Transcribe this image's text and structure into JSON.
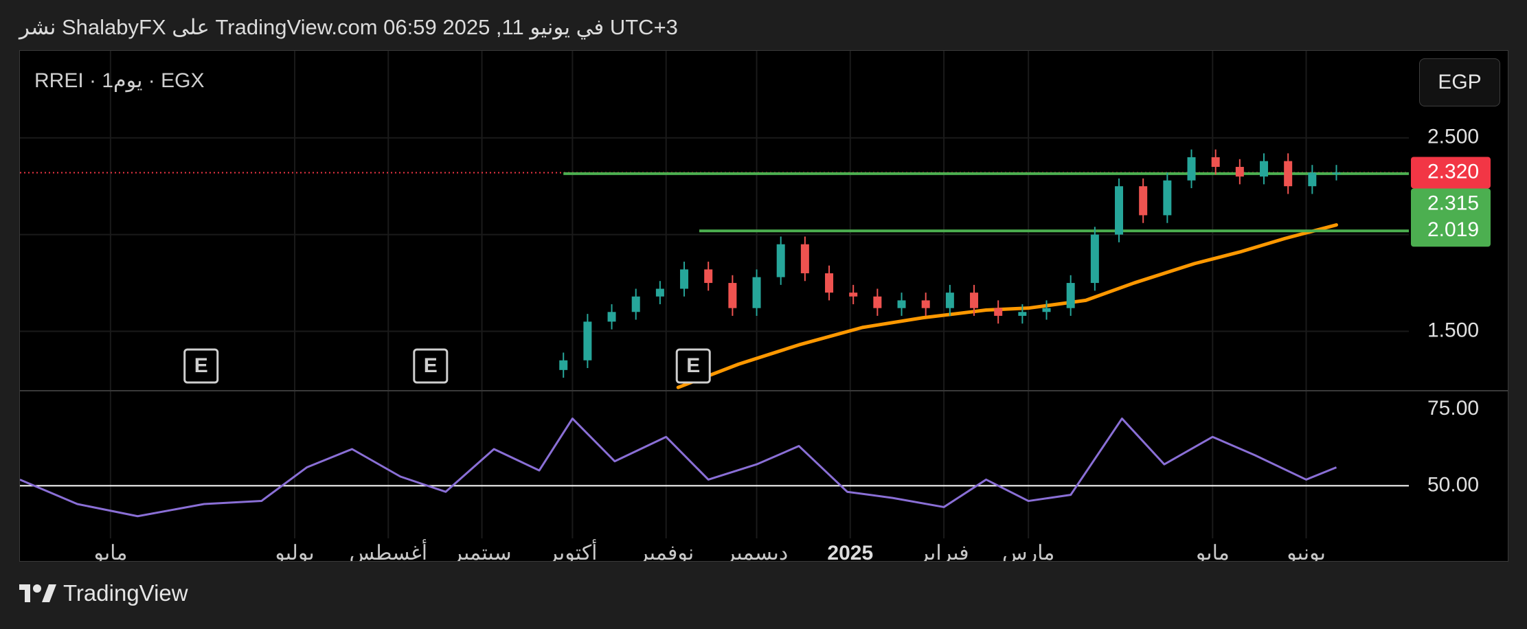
{
  "header": {
    "text": "نشر ShalabyFX على TradingView.com 06:59 2025 ,11 في يونيو UTC+3"
  },
  "chart": {
    "symbol_label": "RREI · 1يوم · EGX",
    "currency_button": "EGP",
    "event_marker_label": "E"
  },
  "footer": {
    "brand": "TradingView"
  },
  "colors": {
    "background": "#000000",
    "up_candle": "#26a69a",
    "down_candle": "#ef5350",
    "moving_average": "#ff9800",
    "horizontal_line": "#4caf50",
    "rsi_line": "#8a6fd6",
    "last_price_label": "#f23645",
    "level_label": "#4caf50"
  },
  "chart_data": [
    {
      "type": "candlestick",
      "ylim": [
        1.2,
        2.95
      ],
      "yticks": [
        "2.500",
        "1.500"
      ],
      "ytick_values": [
        2.5,
        1.5
      ],
      "xticks": [
        "مايو",
        "يوليو",
        "أغسطس",
        "سبتمبر",
        "أكتوبر",
        "نوفمبر",
        "ديسمبر",
        "2025",
        "فبراير",
        "مارس",
        "مايو",
        "يونيو"
      ],
      "price_labels": [
        {
          "text": "2.320",
          "value": 2.32,
          "kind": "last-price"
        },
        {
          "text": "2.315",
          "value": 2.315,
          "kind": "horizontal-line"
        },
        {
          "text": "2.019",
          "value": 2.019,
          "kind": "horizontal-line"
        }
      ],
      "horizontal_lines": [
        {
          "value": 2.315,
          "from_date": "2024-09-28"
        },
        {
          "value": 2.019,
          "from_date": "2024-11-12"
        }
      ],
      "series": [
        {
          "name": "price",
          "x": [
            "2024-09-28",
            "2024-10-06",
            "2024-10-14",
            "2024-10-22",
            "2024-10-30",
            "2024-11-07",
            "2024-11-15",
            "2024-11-23",
            "2024-12-01",
            "2024-12-09",
            "2024-12-17",
            "2024-12-25",
            "2025-01-02",
            "2025-01-10",
            "2025-01-18",
            "2025-01-26",
            "2025-02-03",
            "2025-02-11",
            "2025-02-19",
            "2025-02-27",
            "2025-03-07",
            "2025-03-15",
            "2025-03-23",
            "2025-03-31",
            "2025-04-08",
            "2025-04-16",
            "2025-04-24",
            "2025-05-02",
            "2025-05-10",
            "2025-05-18",
            "2025-05-26",
            "2025-06-03",
            "2025-06-11"
          ],
          "values": [
            1.35,
            1.55,
            1.6,
            1.68,
            1.72,
            1.82,
            1.75,
            1.62,
            1.78,
            1.95,
            1.8,
            1.7,
            1.68,
            1.62,
            1.66,
            1.62,
            1.7,
            1.62,
            1.58,
            1.6,
            1.62,
            1.75,
            2.0,
            2.25,
            2.1,
            2.28,
            2.4,
            2.35,
            2.3,
            2.38,
            2.25,
            2.32,
            2.32
          ]
        },
        {
          "name": "moving-average",
          "x": [
            "2024-11-05",
            "2024-11-25",
            "2024-12-15",
            "2025-01-05",
            "2025-01-25",
            "2025-02-15",
            "2025-03-01",
            "2025-03-20",
            "2025-04-05",
            "2025-04-25",
            "2025-05-10",
            "2025-05-25",
            "2025-06-11"
          ],
          "values": [
            1.21,
            1.33,
            1.43,
            1.52,
            1.57,
            1.61,
            1.62,
            1.66,
            1.75,
            1.85,
            1.91,
            1.98,
            2.05
          ]
        }
      ],
      "events": [
        "2024-05-31",
        "2024-08-15",
        "2024-11-10"
      ]
    },
    {
      "type": "line",
      "ylim": [
        35,
        80
      ],
      "yticks": [
        "75.00",
        "50.00"
      ],
      "ytick_values": [
        75,
        50
      ],
      "reference_line": 50,
      "series": [
        {
          "name": "RSI",
          "x": [
            "2024-04-01",
            "2024-04-20",
            "2024-05-10",
            "2024-06-01",
            "2024-06-20",
            "2024-07-05",
            "2024-07-20",
            "2024-08-05",
            "2024-08-20",
            "2024-09-05",
            "2024-09-20",
            "2024-10-01",
            "2024-10-15",
            "2024-11-01",
            "2024-11-15",
            "2024-12-01",
            "2024-12-15",
            "2024-12-31",
            "2025-01-15",
            "2025-02-01",
            "2025-02-15",
            "2025-03-01",
            "2025-03-15",
            "2025-04-01",
            "2025-04-15",
            "2025-05-01",
            "2025-05-15",
            "2025-06-01",
            "2025-06-11"
          ],
          "values": [
            52,
            44,
            40,
            44,
            45,
            56,
            62,
            53,
            48,
            62,
            55,
            72,
            58,
            66,
            52,
            57,
            63,
            48,
            46,
            43,
            52,
            45,
            47,
            72,
            57,
            66,
            60,
            52,
            56
          ]
        }
      ]
    }
  ]
}
